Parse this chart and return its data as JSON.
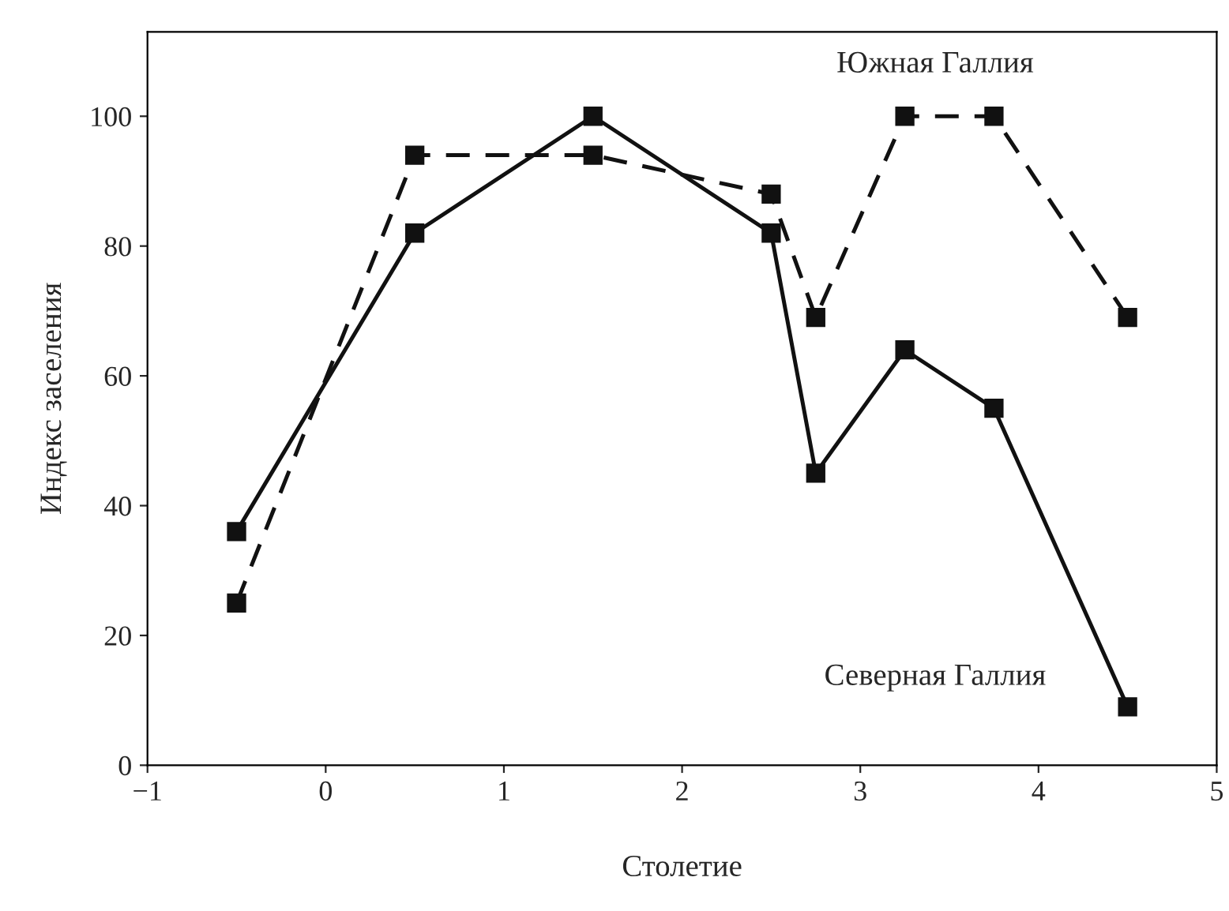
{
  "chart_data": {
    "type": "line",
    "xlabel": "Столетие",
    "ylabel": "Индекс заселения",
    "xlim": [
      -1,
      5
    ],
    "xticks": [
      -1,
      0,
      1,
      2,
      3,
      4,
      5
    ],
    "ylim": [
      0,
      113
    ],
    "yticks": [
      0,
      20,
      40,
      60,
      80,
      100
    ],
    "grid": false,
    "legend": false,
    "marker": "square",
    "series": [
      {
        "name": "Южная Галлия",
        "color": "#111111",
        "line_style": "dashed",
        "x": [
          -0.5,
          0.5,
          1.5,
          2.5,
          2.75,
          3.25,
          3.75,
          4.5
        ],
        "values": [
          25,
          94,
          94,
          88,
          69,
          100,
          100,
          69
        ]
      },
      {
        "name": "Северная Галлия",
        "color": "#111111",
        "line_style": "solid",
        "x": [
          -0.5,
          0.5,
          1.5,
          2.5,
          2.75,
          3.25,
          3.75,
          4.5
        ],
        "values": [
          36,
          82,
          100,
          82,
          45,
          64,
          55,
          9
        ]
      }
    ]
  }
}
